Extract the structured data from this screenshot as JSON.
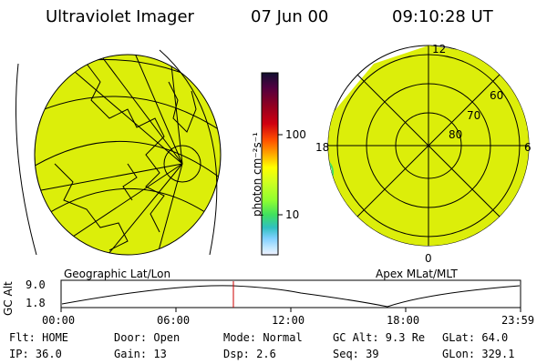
{
  "header": {
    "title": "Ultraviolet Imager",
    "date": "07 Jun 00",
    "time": "09:10:28 UT"
  },
  "geo_panel": {
    "label": "Geographic Lat/Lon"
  },
  "polar_panel": {
    "label": "Apex MLat/MLT",
    "mlt_labels": [
      "12",
      "18",
      "6",
      "0"
    ],
    "lat_labels": [
      "60",
      "70",
      "80"
    ]
  },
  "colorbar": {
    "unit_label": "photon cm⁻²s⁻¹",
    "ticks": [
      "100",
      "10"
    ],
    "colors": [
      "#101030",
      "#500040",
      "#900020",
      "#d00010",
      "#ff5000",
      "#ffa000",
      "#ffff00",
      "#d0ff20",
      "#90ff30",
      "#40e060",
      "#30c0c0",
      "#80d0ff",
      "#c0e8ff",
      "#f0f0ff"
    ]
  },
  "altitude_plot": {
    "axis_title": "GC Alt",
    "y_ticks": [
      "9.0",
      "1.8"
    ],
    "x_ticks": [
      "00:00",
      "06:00",
      "12:00",
      "18:00",
      "23:59"
    ]
  },
  "status": {
    "flt": "Flt: HOME",
    "door": "Door: Open",
    "mode": "Mode: Normal",
    "gc_alt": "GC Alt: 9.3 Re",
    "glat": "GLat:  64.0",
    "ip": "IP: 36.0",
    "gain": "Gain: 13",
    "dsp": "Dsp:    2.6",
    "seq": "Seq: 39",
    "glon": "GLon: 329.1"
  },
  "fill_color": "#dcee0a"
}
